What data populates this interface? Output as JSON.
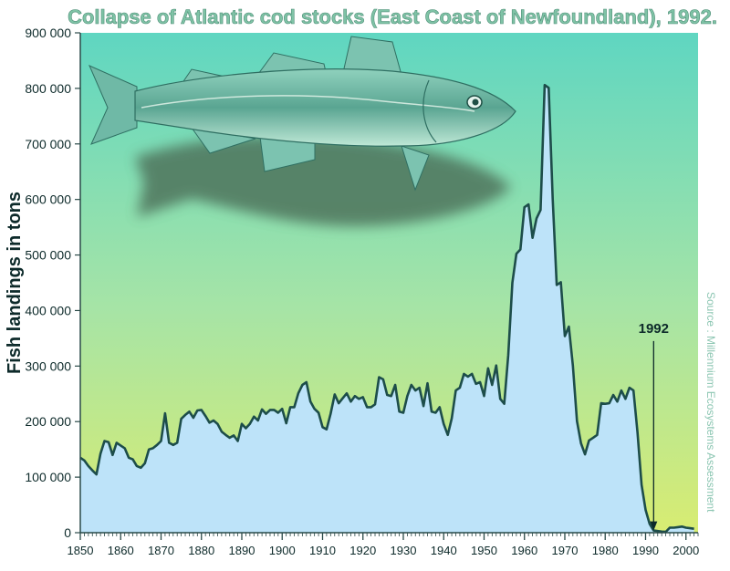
{
  "colors": {
    "bg_top": "#5fd6c1",
    "bg_mid": "#a6e4a6",
    "bg_bottom": "#d8ec72",
    "area_fill": "#bde3f9",
    "line": "#1d4d4a",
    "title": "#7fc3a6",
    "fish_body": "#6ab5a3",
    "fish_shadow": "#4b6d57"
  },
  "chart_data": {
    "type": "area",
    "title": "Collapse of Atlantic cod stocks (East Coast of Newfoundland), 1992.",
    "xlabel": "",
    "ylabel": "Fish landings in tons",
    "xlim": [
      1850,
      2003
    ],
    "ylim": [
      0,
      900000
    ],
    "grid": false,
    "xticks": [
      "1850",
      "1860",
      "1870",
      "1880",
      "1890",
      "1900",
      "1910",
      "1920",
      "1930",
      "1940",
      "1950",
      "1960",
      "1970",
      "1980",
      "1990",
      "2000"
    ],
    "yticks": [
      "900 000",
      "800 000",
      "700 000",
      "600 000",
      "500 000",
      "400 000",
      "300 000",
      "200 000",
      "100 000",
      "0"
    ],
    "annotation": {
      "label": "1992",
      "year": 1992
    },
    "source": "Source : Millennium Ecosystems Assessment",
    "series": [
      {
        "x": [
          1850,
          1851,
          1852,
          1853,
          1854,
          1855,
          1856,
          1857,
          1858,
          1859,
          1860,
          1861,
          1862,
          1863,
          1864,
          1865,
          1866,
          1867,
          1868,
          1869,
          1870,
          1871,
          1872,
          1873,
          1874,
          1875,
          1876,
          1877,
          1878,
          1879,
          1880,
          1881,
          1882,
          1883,
          1884,
          1885,
          1886,
          1887,
          1888,
          1889,
          1890,
          1891,
          1892,
          1893,
          1894,
          1895,
          1896,
          1897,
          1898,
          1899,
          1900,
          1901,
          1902,
          1903,
          1904,
          1905,
          1906,
          1907,
          1908,
          1909,
          1910,
          1911,
          1912,
          1913,
          1914,
          1915,
          1916,
          1917,
          1918,
          1919,
          1920,
          1921,
          1922,
          1923,
          1924,
          1925,
          1926,
          1927,
          1928,
          1929,
          1930,
          1931,
          1932,
          1933,
          1934,
          1935,
          1936,
          1937,
          1938,
          1939,
          1940,
          1941,
          1942,
          1943,
          1944,
          1945,
          1946,
          1947,
          1948,
          1949,
          1950,
          1951,
          1952,
          1953,
          1954,
          1955,
          1956,
          1957,
          1958,
          1959,
          1960,
          1961,
          1962,
          1963,
          1964,
          1965,
          1966,
          1967,
          1968,
          1969,
          1970,
          1971,
          1972,
          1973,
          1974,
          1975,
          1976,
          1977,
          1978,
          1979,
          1980,
          1981,
          1982,
          1983,
          1984,
          1985,
          1986,
          1987,
          1988,
          1989,
          1990,
          1991,
          1992,
          1993,
          1994,
          1995,
          1996,
          1997,
          1998,
          1999,
          2000,
          2001,
          2002
        ],
        "y": [
          135000,
          130000,
          120000,
          112000,
          105000,
          142000,
          165000,
          163000,
          140000,
          162000,
          157000,
          152000,
          135000,
          132000,
          120000,
          117000,
          125000,
          150000,
          152000,
          158000,
          165000,
          215000,
          162000,
          158000,
          162000,
          205000,
          212000,
          218000,
          207000,
          220000,
          221000,
          210000,
          198000,
          202000,
          196000,
          182000,
          176000,
          171000,
          175000,
          165000,
          196000,
          188000,
          196000,
          209000,
          202000,
          222000,
          214000,
          221000,
          221000,
          216000,
          223000,
          197000,
          226000,
          226000,
          251000,
          266000,
          271000,
          236000,
          223000,
          216000,
          190000,
          186000,
          214000,
          249000,
          233000,
          242000,
          251000,
          236000,
          246000,
          241000,
          244000,
          226000,
          226000,
          231000,
          280000,
          276000,
          248000,
          246000,
          266000,
          218000,
          216000,
          246000,
          266000,
          256000,
          261000,
          228000,
          269000,
          218000,
          216000,
          226000,
          196000,
          176000,
          206000,
          256000,
          261000,
          286000,
          281000,
          286000,
          268000,
          271000,
          246000,
          296000,
          266000,
          301000,
          241000,
          232000,
          320000,
          450000,
          502000,
          510000,
          586000,
          591000,
          531000,
          566000,
          581000,
          806000,
          801000,
          601000,
          446000,
          451000,
          354000,
          371000,
          301000,
          201000,
          161000,
          141000,
          166000,
          171000,
          176000,
          233000,
          232000,
          233000,
          248000,
          236000,
          256000,
          241000,
          261000,
          256000,
          181000,
          86000,
          41000,
          16000,
          4000,
          3000,
          2000,
          1500,
          9000,
          9000,
          10000,
          11000,
          9000,
          8000,
          7000
        ]
      }
    ]
  }
}
